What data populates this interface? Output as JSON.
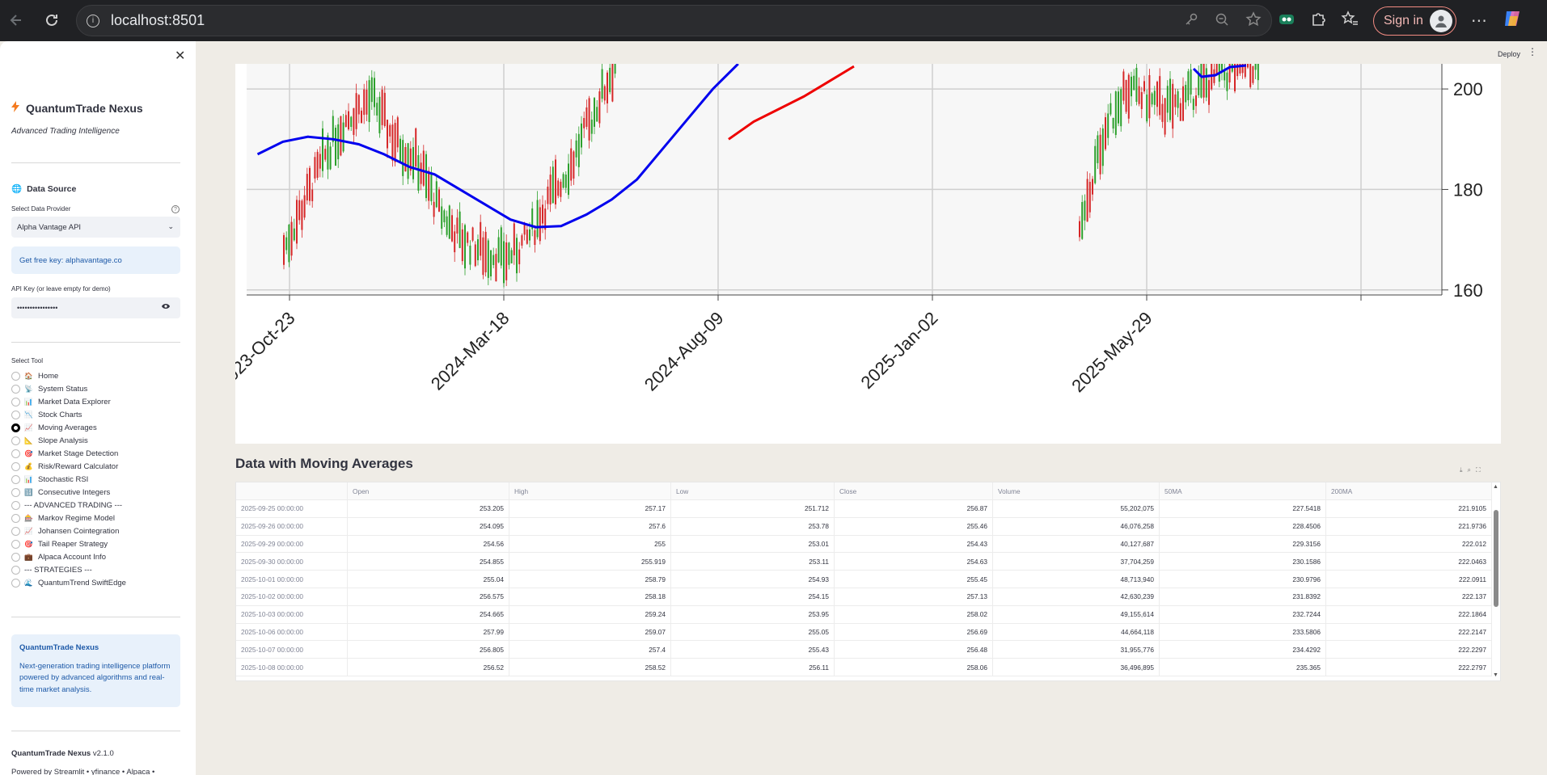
{
  "browser": {
    "url": "localhost:8501",
    "signin_label": "Sign in"
  },
  "app": {
    "deploy_label": "Deploy"
  },
  "sidebar": {
    "brand": "QuantumTrade Nexus",
    "tagline": "Advanced Trading Intelligence",
    "data_source_heading": "Data Source",
    "provider_label": "Select Data Provider",
    "provider_value": "Alpha Vantage API",
    "free_key_info": "Get free key: alphavantage.co",
    "api_key_label": "API Key (or leave empty for demo)",
    "api_key_value": "••••••••••••••••",
    "tool_label": "Select Tool",
    "tools": [
      {
        "icon": "🏠",
        "label": "Home",
        "selected": false
      },
      {
        "icon": "📡",
        "label": "System Status",
        "selected": false
      },
      {
        "icon": "📊",
        "label": "Market Data Explorer",
        "selected": false
      },
      {
        "icon": "📉",
        "label": "Stock Charts",
        "selected": false
      },
      {
        "icon": "📈",
        "label": "Moving Averages",
        "selected": true
      },
      {
        "icon": "📐",
        "label": "Slope Analysis",
        "selected": false
      },
      {
        "icon": "🎯",
        "label": "Market Stage Detection",
        "selected": false
      },
      {
        "icon": "💰",
        "label": "Risk/Reward Calculator",
        "selected": false
      },
      {
        "icon": "📊",
        "label": "Stochastic RSI",
        "selected": false
      },
      {
        "icon": "🔢",
        "label": "Consecutive Integers",
        "selected": false
      },
      {
        "icon": "",
        "label": "--- ADVANCED TRADING ---",
        "selected": false
      },
      {
        "icon": "🎰",
        "label": "Markov Regime Model",
        "selected": false
      },
      {
        "icon": "📈",
        "label": "Johansen Cointegration",
        "selected": false
      },
      {
        "icon": "🎯",
        "label": "Tail Reaper Strategy",
        "selected": false
      },
      {
        "icon": "💼",
        "label": "Alpaca Account Info",
        "selected": false
      },
      {
        "icon": "",
        "label": "--- STRATEGIES ---",
        "selected": false
      },
      {
        "icon": "🌊",
        "label": "QuantumTrend SwiftEdge",
        "selected": false
      }
    ],
    "about_title": "QuantumTrade Nexus",
    "about_text": "Next-generation trading intelligence platform powered by advanced algorithms and real-time market analysis.",
    "version_name": "QuantumTrade Nexus",
    "version_num": "v2.1.0",
    "powered_by": "Powered by Streamlit • yfinance • Alpaca •"
  },
  "chart_data": {
    "type": "line",
    "x_ticks": [
      "2023-Oct-23",
      "2024-Mar-18",
      "2024-Aug-09",
      "2025-Jan-02",
      "2025-May-29"
    ],
    "y_ticks": [
      160,
      180,
      200
    ],
    "ylim": [
      159,
      205
    ],
    "series": [
      {
        "name": "",
        "color": "#0000ee",
        "x": [
          0.14,
          0.18,
          0.22,
          0.26,
          0.3,
          0.34,
          0.38,
          0.42,
          0.46,
          0.5,
          0.54,
          0.58,
          0.62,
          0.66,
          0.7,
          0.74,
          0.78,
          0.82,
          0.86,
          0.9
        ],
        "y": [
          187,
          189.5,
          190.5,
          190,
          189,
          187,
          184.5,
          183,
          180,
          177,
          174,
          172.5,
          172.7,
          175,
          178,
          182,
          188,
          194,
          200,
          205
        ]
      },
      {
        "name": "",
        "color": "#ee0000",
        "x": [
          0.0,
          0.1,
          0.2,
          0.3,
          0.4,
          0.5
        ],
        "y": [
          190,
          193.5,
          196,
          198.5,
          201.5,
          204.5
        ]
      }
    ],
    "candles_color_up": "#2ca02c",
    "candles_color_down": "#d62728"
  },
  "data_table": {
    "heading": "Data with Moving Averages",
    "columns": [
      "",
      "Open",
      "High",
      "Low",
      "Close",
      "Volume",
      "50MA",
      "200MA"
    ],
    "rows": [
      [
        "2025-09-25 00:00:00",
        "253.205",
        "257.17",
        "251.712",
        "256.87",
        "55,202,075",
        "227.5418",
        "221.9105"
      ],
      [
        "2025-09-26 00:00:00",
        "254.095",
        "257.6",
        "253.78",
        "255.46",
        "46,076,258",
        "228.4506",
        "221.9736"
      ],
      [
        "2025-09-29 00:00:00",
        "254.56",
        "255",
        "253.01",
        "254.43",
        "40,127,687",
        "229.3156",
        "222.012"
      ],
      [
        "2025-09-30 00:00:00",
        "254.855",
        "255.919",
        "253.11",
        "254.63",
        "37,704,259",
        "230.1586",
        "222.0463"
      ],
      [
        "2025-10-01 00:00:00",
        "255.04",
        "258.79",
        "254.93",
        "255.45",
        "48,713,940",
        "230.9796",
        "222.0911"
      ],
      [
        "2025-10-02 00:00:00",
        "256.575",
        "258.18",
        "254.15",
        "257.13",
        "42,630,239",
        "231.8392",
        "222.137"
      ],
      [
        "2025-10-03 00:00:00",
        "254.665",
        "259.24",
        "253.95",
        "258.02",
        "49,155,614",
        "232.7244",
        "222.1864"
      ],
      [
        "2025-10-06 00:00:00",
        "257.99",
        "259.07",
        "255.05",
        "256.69",
        "44,664,118",
        "233.5806",
        "222.2147"
      ],
      [
        "2025-10-07 00:00:00",
        "256.805",
        "257.4",
        "255.43",
        "256.48",
        "31,955,776",
        "234.4292",
        "222.2297"
      ],
      [
        "2025-10-08 00:00:00",
        "256.52",
        "258.52",
        "256.11",
        "258.06",
        "36,496,895",
        "235.365",
        "222.2797"
      ]
    ]
  }
}
